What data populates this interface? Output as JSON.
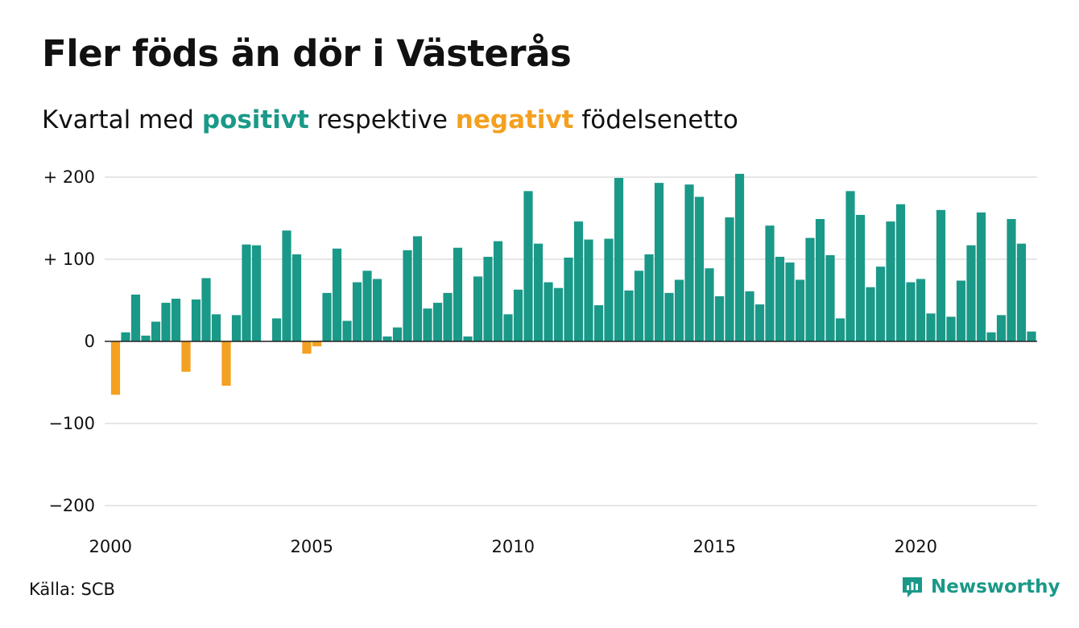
{
  "title": "Fler föds än dör i Västerås",
  "subtitle": {
    "pre": "Kvartal med ",
    "positive": "positivt",
    "mid": " respektive ",
    "negative": "negativt",
    "post": " födelsenetto"
  },
  "source": "Källa: SCB",
  "brand": "Newsworthy",
  "colors": {
    "positive": "#1a9988",
    "negative": "#f4a020",
    "grid": "#dddddd",
    "axis": "#222222"
  },
  "chart_data": {
    "type": "bar",
    "title": "Fler föds än dör i Västerås",
    "start_year": 2000,
    "x_ticks": [
      {
        "year": 2000,
        "label": "2000"
      },
      {
        "year": 2005,
        "label": "2005"
      },
      {
        "year": 2010,
        "label": "2010"
      },
      {
        "year": 2015,
        "label": "2015"
      },
      {
        "year": 2020,
        "label": "2020"
      }
    ],
    "y_ticks": [
      {
        "value": 200,
        "label": "+ 200"
      },
      {
        "value": 100,
        "label": "+ 100"
      },
      {
        "value": 0,
        "label": "0"
      },
      {
        "value": -100,
        "label": "−100"
      },
      {
        "value": -200,
        "label": "−200"
      }
    ],
    "ylim": [
      -200,
      200
    ],
    "grid": true,
    "values": [
      -65,
      11,
      57,
      7,
      24,
      47,
      52,
      -37,
      51,
      77,
      33,
      -54,
      32,
      118,
      117,
      0,
      28,
      135,
      106,
      -15,
      -6,
      59,
      113,
      25,
      72,
      86,
      76,
      6,
      17,
      111,
      128,
      40,
      47,
      59,
      114,
      6,
      79,
      103,
      122,
      33,
      63,
      183,
      119,
      72,
      65,
      102,
      146,
      124,
      44,
      125,
      199,
      62,
      86,
      106,
      193,
      59,
      75,
      191,
      176,
      89,
      55,
      151,
      204,
      61,
      45,
      141,
      103,
      96,
      75,
      126,
      149,
      105,
      28,
      183,
      154,
      66,
      91,
      146,
      167,
      72,
      76,
      34,
      160,
      30,
      74,
      117,
      157,
      11,
      32,
      149,
      119,
      12
    ]
  }
}
